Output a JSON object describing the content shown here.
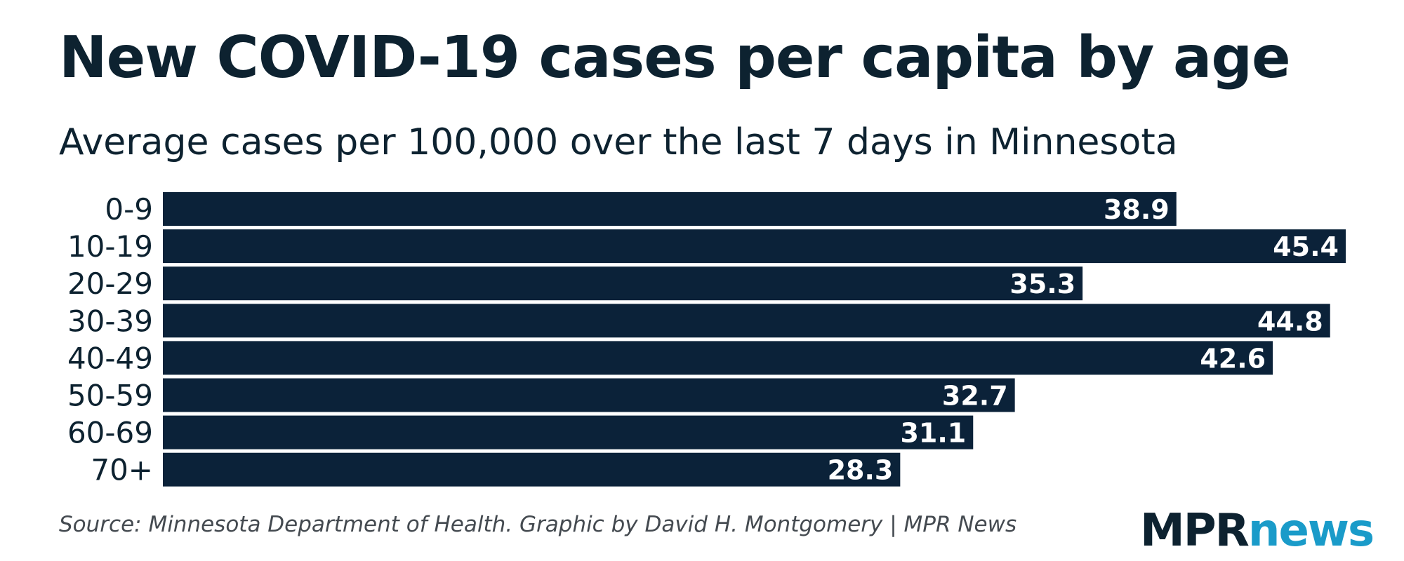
{
  "header": {
    "title": "New COVID-19 cases per capita by age",
    "subtitle": "Average cases per 100,000 over the last 7 days in Minnesota"
  },
  "footer": {
    "source": "Source: Minnesota Department of Health. Graphic by David H. Montgomery | MPR News"
  },
  "logo": {
    "part1": "MPR",
    "part2": "news"
  },
  "colors": {
    "bar": "#0b2239",
    "bar_label": "#ffffff",
    "text": "#0d2230",
    "logo_accent": "#1a9bc9"
  },
  "chart_data": {
    "type": "bar",
    "orientation": "horizontal",
    "title": "New COVID-19 cases per capita by age",
    "subtitle": "Average cases per 100,000 over the last 7 days in Minnesota",
    "xlabel": "",
    "ylabel": "",
    "grid": false,
    "xlim": [
      0,
      45.4
    ],
    "categories": [
      "0-9",
      "10-19",
      "20-29",
      "30-39",
      "40-49",
      "50-59",
      "60-69",
      "70+"
    ],
    "values": [
      38.9,
      45.4,
      35.3,
      44.8,
      42.6,
      32.7,
      31.1,
      28.3
    ],
    "value_labels": [
      "38.9",
      "45.4",
      "35.3",
      "44.8",
      "42.6",
      "32.7",
      "31.1",
      "28.3"
    ]
  }
}
